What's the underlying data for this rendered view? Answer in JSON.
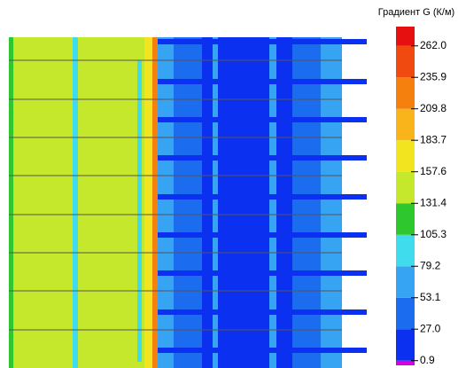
{
  "chart_data": {
    "type": "colorfield",
    "title": "Градиент G (К/м)",
    "clim": [
      -3,
      278
    ],
    "cticks": [
      0.9,
      {
        "value": 27,
        "label": "27.0"
      },
      53.1,
      79.2,
      105.3,
      131.4,
      157.6,
      183.7,
      209.8,
      235.9,
      {
        "value": 262,
        "label": "262.0"
      }
    ],
    "colors": [
      "#d400e0",
      "#0c30f0",
      "#1c6cf0",
      "#36a4f2",
      "#3edcec",
      "#2ec82e",
      "#c6e82c",
      "#f2e41e",
      "#f8b41a",
      "#f6800e",
      "#f04a10",
      "#e61010"
    ]
  }
}
